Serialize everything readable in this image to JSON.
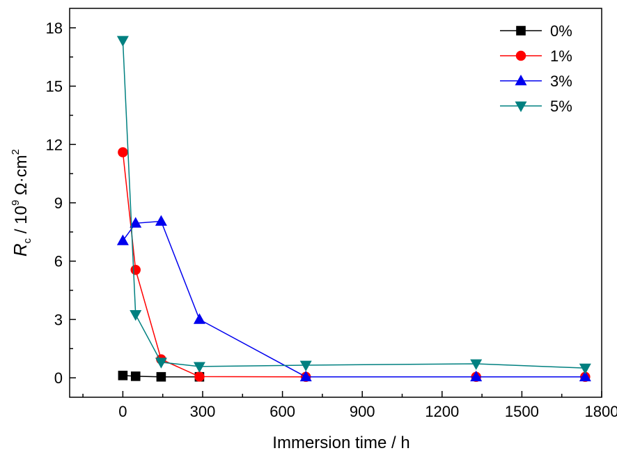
{
  "chart_data": {
    "type": "line",
    "xlabel": "Immersion time / h",
    "ylabel": {
      "symbol": "R",
      "subscript": "c",
      "prefix": " / 10",
      "exponent": "9",
      "unit_base": " Ω·cm",
      "unit_exponent": "2"
    },
    "xlim": [
      -200,
      1800
    ],
    "ylim": [
      -1,
      19
    ],
    "xticks": [
      0,
      300,
      600,
      900,
      1200,
      1500,
      1800
    ],
    "xtick_labels": [
      "0",
      "300",
      "600",
      "900",
      "1200",
      "1500",
      "1800"
    ],
    "yticks": [
      0,
      3,
      6,
      9,
      12,
      15,
      18
    ],
    "ytick_labels": [
      "0",
      "3",
      "6",
      "9",
      "12",
      "15",
      "18"
    ],
    "grid": false,
    "legend_position": "top-right",
    "series": [
      {
        "name": "0%",
        "marker": "square",
        "color": "#000000",
        "x": [
          0,
          48,
          144,
          288
        ],
        "y": [
          0.12,
          0.08,
          0.05,
          0.05
        ]
      },
      {
        "name": "1%",
        "marker": "circle",
        "color": "#ff0000",
        "x": [
          0,
          48,
          144,
          288,
          688,
          1328,
          1738
        ],
        "y": [
          11.6,
          5.55,
          0.95,
          0.06,
          0.05,
          0.05,
          0.05
        ]
      },
      {
        "name": "3%",
        "marker": "triangle-up",
        "color": "#0000ee",
        "x": [
          0,
          48,
          144,
          288,
          688,
          1328,
          1738
        ],
        "y": [
          7.05,
          7.95,
          8.05,
          3.0,
          0.05,
          0.05,
          0.05
        ]
      },
      {
        "name": "5%",
        "marker": "triangle-down",
        "color": "#008080",
        "x": [
          0,
          48,
          144,
          288,
          688,
          1328,
          1738
        ],
        "y": [
          17.35,
          3.25,
          0.8,
          0.58,
          0.65,
          0.72,
          0.5
        ]
      }
    ]
  }
}
